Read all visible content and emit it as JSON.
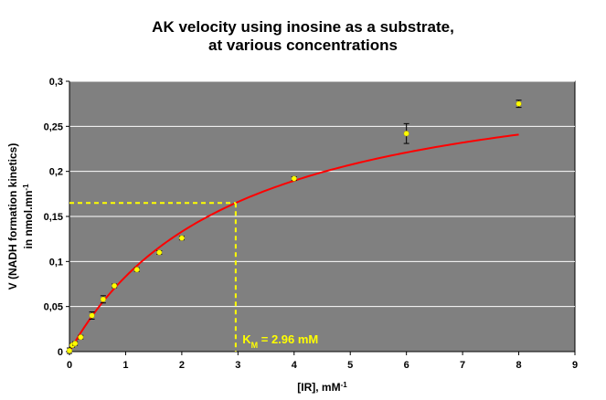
{
  "chart_data": {
    "type": "scatter",
    "title_lines": [
      "AK velocity using inosine as a substrate,",
      "at various concentrations"
    ],
    "xlabel": {
      "text": "[IR], mM",
      "superscript": "-1"
    },
    "ylabel_lines": [
      {
        "text": "V (NADH formation kinetics)",
        "superscript": ""
      },
      {
        "text": "in nmol.mn",
        "superscript": "-1"
      }
    ],
    "xlim": [
      0,
      9
    ],
    "ylim": [
      0,
      0.3
    ],
    "x_ticks": [
      0,
      1,
      2,
      3,
      4,
      5,
      6,
      7,
      8,
      9
    ],
    "x_tick_labels": [
      "0",
      "1",
      "2",
      "3",
      "4",
      "5",
      "6",
      "7",
      "8",
      "9"
    ],
    "y_ticks": [
      0,
      0.05,
      0.1,
      0.15,
      0.2,
      0.25,
      0.3
    ],
    "y_tick_labels": [
      "0",
      "0,05",
      "0,1",
      "0,15",
      "0,2",
      "0,25",
      "0,3"
    ],
    "grid": "horizontal",
    "plot_background": "#808080",
    "series": [
      {
        "kind": "points",
        "color": "#ffff00",
        "points": [
          {
            "x": 0,
            "y": 0.001,
            "err": 0.003
          },
          {
            "x": 0.05,
            "y": 0.007,
            "err": 0.002
          },
          {
            "x": 0.1,
            "y": 0.009,
            "err": 0.002
          },
          {
            "x": 0.2,
            "y": 0.016,
            "err": 0.002
          },
          {
            "x": 0.4,
            "y": 0.04,
            "err": 0.004
          },
          {
            "x": 0.6,
            "y": 0.058,
            "err": 0.004
          },
          {
            "x": 0.8,
            "y": 0.073,
            "err": 0.002
          },
          {
            "x": 1.2,
            "y": 0.091,
            "err": 0.002
          },
          {
            "x": 1.6,
            "y": 0.11,
            "err": 0.002
          },
          {
            "x": 2,
            "y": 0.126,
            "err": 0.002
          },
          {
            "x": 4,
            "y": 0.192,
            "err": 0.002
          },
          {
            "x": 6,
            "y": 0.242,
            "err": 0.011
          },
          {
            "x": 8,
            "y": 0.275,
            "err": 0.004
          }
        ]
      },
      {
        "kind": "fit",
        "color": "#ff0000",
        "model": "michaelis-menten",
        "vmax": 0.33,
        "km": 2.96,
        "x_range": [
          0,
          8
        ]
      }
    ],
    "annotations": [
      {
        "kind": "dashed-guide",
        "color": "#ffff00",
        "x": 2.96,
        "y": 0.165
      },
      {
        "kind": "label",
        "color": "#ffff00",
        "text": "K",
        "subscript": "M",
        "suffix": " = 2.96 mM",
        "x": 3.08,
        "y": 0.003
      }
    ]
  }
}
